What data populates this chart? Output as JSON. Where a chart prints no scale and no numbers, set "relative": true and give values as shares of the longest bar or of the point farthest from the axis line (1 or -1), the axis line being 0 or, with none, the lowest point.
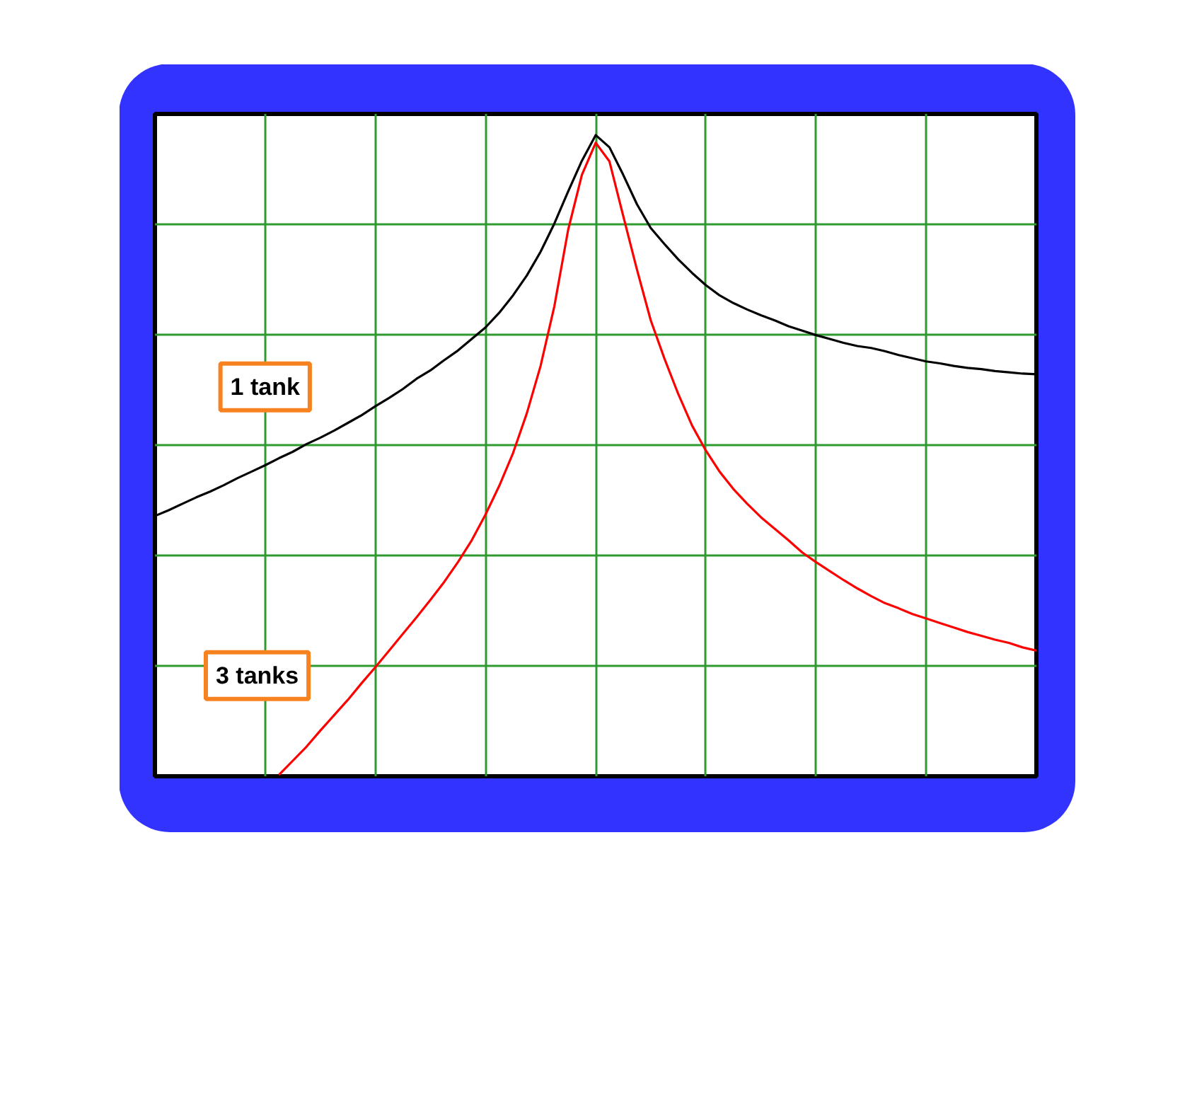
{
  "chart_data": {
    "type": "line",
    "relative": true,
    "grid": true,
    "line_style": "solid",
    "categories": [
      null,
      null,
      null,
      null,
      null,
      null,
      null,
      null,
      null,
      null,
      null,
      null,
      null,
      null,
      null,
      null,
      null,
      null,
      null,
      null,
      null,
      null,
      null,
      null,
      null,
      null,
      null,
      null,
      null,
      null,
      null,
      null,
      null,
      null,
      null,
      null,
      null,
      null,
      null,
      null,
      null,
      null,
      null,
      null,
      null,
      null,
      null,
      null,
      null,
      null,
      null,
      null,
      null,
      null,
      null,
      null,
      null,
      null,
      null,
      null,
      null,
      null,
      null,
      null,
      null
    ],
    "series": [
      {
        "name": "1 tank",
        "color": "#000000",
        "values": [
          0.406,
          0.415,
          0.425,
          0.435,
          0.444,
          0.454,
          0.465,
          0.475,
          0.485,
          0.496,
          0.506,
          0.518,
          0.528,
          0.539,
          0.551,
          0.563,
          0.577,
          0.59,
          0.604,
          0.62,
          0.633,
          0.649,
          0.664,
          0.682,
          0.7,
          0.723,
          0.75,
          0.781,
          0.818,
          0.862,
          0.912,
          0.96,
          1.0,
          0.981,
          0.938,
          0.892,
          0.855,
          0.83,
          0.806,
          0.785,
          0.766,
          0.75,
          0.738,
          0.728,
          0.719,
          0.711,
          0.702,
          0.695,
          0.688,
          0.682,
          0.676,
          0.671,
          0.668,
          0.663,
          0.657,
          0.652,
          0.647,
          0.644,
          0.64,
          0.637,
          0.635,
          0.632,
          0.63,
          0.628,
          0.627
        ]
      },
      {
        "name": "3 tanks",
        "color": "#ff0000",
        "values": [
          null,
          null,
          null,
          null,
          null,
          null,
          null,
          null,
          null,
          0.002,
          0.024,
          0.046,
          0.071,
          0.095,
          0.119,
          0.145,
          0.17,
          0.196,
          0.222,
          0.248,
          0.275,
          0.303,
          0.334,
          0.368,
          0.408,
          0.453,
          0.504,
          0.566,
          0.64,
          0.733,
          0.852,
          0.938,
          0.988,
          0.959,
          0.874,
          0.79,
          0.711,
          0.651,
          0.596,
          0.547,
          0.508,
          0.475,
          0.448,
          0.425,
          0.404,
          0.386,
          0.368,
          0.349,
          0.334,
          0.32,
          0.306,
          0.293,
          0.281,
          0.27,
          0.262,
          0.253,
          0.246,
          0.239,
          0.232,
          0.225,
          0.219,
          0.213,
          0.208,
          0.201,
          0.196
        ]
      }
    ]
  }
}
